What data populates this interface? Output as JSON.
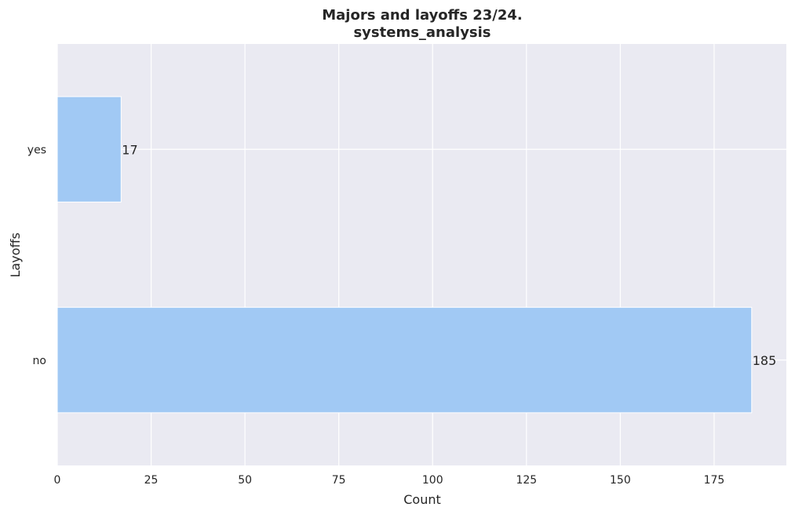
{
  "chart_data": {
    "type": "bar",
    "orientation": "horizontal",
    "title": "Majors and layoffs 23/24.",
    "subtitle": "systems_analysis",
    "xlabel": "Count",
    "ylabel": "Layoffs",
    "categories": [
      "yes",
      "no"
    ],
    "values": [
      17,
      185
    ],
    "data_labels": [
      "17",
      "185"
    ],
    "xlim": [
      0,
      194.25
    ],
    "x_ticks": [
      0,
      25,
      50,
      75,
      100,
      125,
      150,
      175
    ],
    "x_tick_labels": [
      "0",
      "25",
      "50",
      "75",
      "100",
      "125",
      "150",
      "175"
    ],
    "grid": true,
    "legend": "none",
    "colors": {
      "bar": "#a1c9f4",
      "plot_background": "#eaeaf2",
      "grid": "#ffffff",
      "text": "#262626"
    }
  }
}
